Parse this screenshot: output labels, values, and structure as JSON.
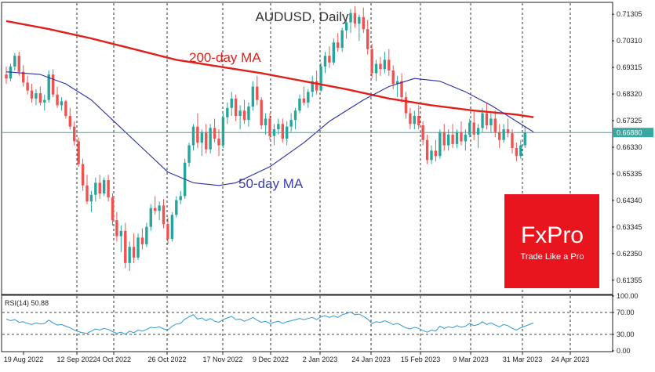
{
  "chart_data": [
    {
      "type": "line",
      "subtype": "candlestick",
      "title": "AUDUSD, Daily",
      "x_tick_labels": [
        "19 Aug 2022",
        "12 Sep 2022",
        "4 Oct 2022",
        "26 Oct 2022",
        "17 Nov 2022",
        "9 Dec 2022",
        "2 Jan 2023",
        "24 Jan 2023",
        "15 Feb 2023",
        "9 Mar 2023",
        "31 Mar 2023",
        "24 Apr 2023"
      ],
      "y_tick_labels": [
        "0.71305",
        "0.70310",
        "0.69315",
        "0.68320",
        "0.67325",
        "0.66330",
        "0.65335",
        "0.64340",
        "0.63345",
        "0.62350",
        "0.61355"
      ],
      "ylim": [
        0.6085,
        0.7172
      ],
      "current_price": "0.66880",
      "grid": "vertical dashed",
      "candles": [
        [
          0.6905,
          0.6935,
          0.687,
          0.689
        ],
        [
          0.689,
          0.6945,
          0.688,
          0.6935
        ],
        [
          0.6935,
          0.6985,
          0.692,
          0.6975
        ],
        [
          0.6975,
          0.699,
          0.69,
          0.6915
        ],
        [
          0.6915,
          0.694,
          0.686,
          0.6875
        ],
        [
          0.6875,
          0.69,
          0.683,
          0.6845
        ],
        [
          0.6845,
          0.687,
          0.68,
          0.6815
        ],
        [
          0.6815,
          0.685,
          0.679,
          0.6835
        ],
        [
          0.6835,
          0.686,
          0.679,
          0.68
        ],
        [
          0.68,
          0.683,
          0.677,
          0.681
        ],
        [
          0.681,
          0.692,
          0.68,
          0.6905
        ],
        [
          0.6905,
          0.6925,
          0.682,
          0.683
        ],
        [
          0.683,
          0.686,
          0.678,
          0.679
        ],
        [
          0.679,
          0.682,
          0.677,
          0.6805
        ],
        [
          0.6805,
          0.681,
          0.674,
          0.675
        ],
        [
          0.675,
          0.678,
          0.67,
          0.671
        ],
        [
          0.671,
          0.673,
          0.664,
          0.6655
        ],
        [
          0.6655,
          0.667,
          0.656,
          0.657
        ],
        [
          0.657,
          0.659,
          0.647,
          0.649
        ],
        [
          0.649,
          0.653,
          0.642,
          0.643
        ],
        [
          0.643,
          0.647,
          0.639,
          0.6455
        ],
        [
          0.6455,
          0.652,
          0.643,
          0.65
        ],
        [
          0.65,
          0.653,
          0.644,
          0.646
        ],
        [
          0.646,
          0.652,
          0.645,
          0.651
        ],
        [
          0.651,
          0.653,
          0.643,
          0.6445
        ],
        [
          0.6445,
          0.646,
          0.634,
          0.636
        ],
        [
          0.636,
          0.639,
          0.628,
          0.63
        ],
        [
          0.63,
          0.634,
          0.624,
          0.632
        ],
        [
          0.632,
          0.635,
          0.618,
          0.62
        ],
        [
          0.62,
          0.628,
          0.617,
          0.626
        ],
        [
          0.626,
          0.631,
          0.62,
          0.622
        ],
        [
          0.622,
          0.631,
          0.621,
          0.6295
        ],
        [
          0.6295,
          0.633,
          0.625,
          0.627
        ],
        [
          0.627,
          0.635,
          0.626,
          0.6335
        ],
        [
          0.6335,
          0.642,
          0.632,
          0.6405
        ],
        [
          0.6405,
          0.645,
          0.638,
          0.6395
        ],
        [
          0.6395,
          0.643,
          0.636,
          0.6415
        ],
        [
          0.6415,
          0.644,
          0.633,
          0.6345
        ],
        [
          0.6345,
          0.637,
          0.627,
          0.629
        ],
        [
          0.629,
          0.639,
          0.628,
          0.638
        ],
        [
          0.638,
          0.645,
          0.637,
          0.6435
        ],
        [
          0.6435,
          0.647,
          0.642,
          0.645
        ],
        [
          0.645,
          0.659,
          0.644,
          0.6575
        ],
        [
          0.6575,
          0.665,
          0.656,
          0.664
        ],
        [
          0.664,
          0.672,
          0.662,
          0.671
        ],
        [
          0.671,
          0.676,
          0.663,
          0.665
        ],
        [
          0.665,
          0.67,
          0.66,
          0.669
        ],
        [
          0.669,
          0.672,
          0.661,
          0.6625
        ],
        [
          0.6625,
          0.672,
          0.661,
          0.6705
        ],
        [
          0.6705,
          0.674,
          0.665,
          0.6665
        ],
        [
          0.6665,
          0.67,
          0.66,
          0.664
        ],
        [
          0.664,
          0.676,
          0.663,
          0.6745
        ],
        [
          0.6745,
          0.68,
          0.672,
          0.678
        ],
        [
          0.678,
          0.684,
          0.675,
          0.6815
        ],
        [
          0.6815,
          0.683,
          0.673,
          0.675
        ],
        [
          0.675,
          0.679,
          0.67,
          0.677
        ],
        [
          0.677,
          0.681,
          0.672,
          0.6735
        ],
        [
          0.6735,
          0.68,
          0.671,
          0.6785
        ],
        [
          0.6785,
          0.688,
          0.677,
          0.686
        ],
        [
          0.686,
          0.69,
          0.679,
          0.681
        ],
        [
          0.681,
          0.682,
          0.67,
          0.6715
        ],
        [
          0.6715,
          0.676,
          0.668,
          0.674
        ],
        [
          0.674,
          0.676,
          0.666,
          0.6675
        ],
        [
          0.6675,
          0.672,
          0.664,
          0.67
        ],
        [
          0.67,
          0.674,
          0.668,
          0.672
        ],
        [
          0.672,
          0.674,
          0.665,
          0.6665
        ],
        [
          0.6665,
          0.673,
          0.664,
          0.671
        ],
        [
          0.671,
          0.676,
          0.669,
          0.6735
        ],
        [
          0.6735,
          0.678,
          0.67,
          0.677
        ],
        [
          0.677,
          0.683,
          0.676,
          0.6815
        ],
        [
          0.6815,
          0.686,
          0.679,
          0.68
        ],
        [
          0.68,
          0.685,
          0.678,
          0.684
        ],
        [
          0.684,
          0.69,
          0.682,
          0.688
        ],
        [
          0.688,
          0.692,
          0.683,
          0.6845
        ],
        [
          0.6845,
          0.695,
          0.684,
          0.6935
        ],
        [
          0.6935,
          0.699,
          0.691,
          0.6975
        ],
        [
          0.6975,
          0.701,
          0.693,
          0.695
        ],
        [
          0.695,
          0.704,
          0.694,
          0.7025
        ],
        [
          0.7025,
          0.706,
          0.699,
          0.7005
        ],
        [
          0.7005,
          0.708,
          0.699,
          0.707
        ],
        [
          0.707,
          0.712,
          0.704,
          0.71
        ],
        [
          0.71,
          0.715,
          0.706,
          0.7135
        ],
        [
          0.7135,
          0.716,
          0.708,
          0.7095
        ],
        [
          0.7095,
          0.713,
          0.703,
          0.712
        ],
        [
          0.712,
          0.7155,
          0.706,
          0.7075
        ],
        [
          0.7075,
          0.711,
          0.698,
          0.7
        ],
        [
          0.7,
          0.702,
          0.689,
          0.691
        ],
        [
          0.691,
          0.696,
          0.688,
          0.6945
        ],
        [
          0.6945,
          0.697,
          0.69,
          0.6925
        ],
        [
          0.6925,
          0.699,
          0.691,
          0.696
        ],
        [
          0.696,
          0.7,
          0.69,
          0.692
        ],
        [
          0.692,
          0.694,
          0.685,
          0.687
        ],
        [
          0.687,
          0.69,
          0.682,
          0.688
        ],
        [
          0.688,
          0.691,
          0.68,
          0.682
        ],
        [
          0.682,
          0.684,
          0.674,
          0.676
        ],
        [
          0.676,
          0.678,
          0.67,
          0.672
        ],
        [
          0.672,
          0.677,
          0.67,
          0.675
        ],
        [
          0.675,
          0.679,
          0.67,
          0.6715
        ],
        [
          0.6715,
          0.673,
          0.664,
          0.666
        ],
        [
          0.666,
          0.668,
          0.657,
          0.6585
        ],
        [
          0.6585,
          0.664,
          0.657,
          0.662
        ],
        [
          0.662,
          0.666,
          0.658,
          0.66
        ],
        [
          0.66,
          0.67,
          0.659,
          0.669
        ],
        [
          0.669,
          0.672,
          0.662,
          0.664
        ],
        [
          0.664,
          0.67,
          0.662,
          0.668
        ],
        [
          0.668,
          0.672,
          0.663,
          0.6645
        ],
        [
          0.6645,
          0.67,
          0.663,
          0.669
        ],
        [
          0.669,
          0.673,
          0.664,
          0.6655
        ],
        [
          0.6655,
          0.67,
          0.662,
          0.668
        ],
        [
          0.668,
          0.674,
          0.667,
          0.6725
        ],
        [
          0.6725,
          0.677,
          0.666,
          0.668
        ],
        [
          0.668,
          0.672,
          0.663,
          0.6705
        ],
        [
          0.6705,
          0.678,
          0.669,
          0.676
        ],
        [
          0.676,
          0.68,
          0.67,
          0.6715
        ],
        [
          0.6715,
          0.676,
          0.669,
          0.674
        ],
        [
          0.674,
          0.677,
          0.667,
          0.669
        ],
        [
          0.669,
          0.672,
          0.663,
          0.666
        ],
        [
          0.666,
          0.672,
          0.665,
          0.67
        ],
        [
          0.67,
          0.674,
          0.667,
          0.6685
        ],
        [
          0.6685,
          0.67,
          0.661,
          0.663
        ],
        [
          0.663,
          0.665,
          0.658,
          0.66
        ],
        [
          0.66,
          0.666,
          0.659,
          0.664
        ],
        [
          0.664,
          0.671,
          0.663,
          0.6688
        ]
      ],
      "series": [
        {
          "name": "200-day MA",
          "color": "#e0201b",
          "values": [
            [
              0,
              0.7105
            ],
            [
              10,
              0.7075
            ],
            [
              20,
              0.704
            ],
            [
              30,
              0.7
            ],
            [
              40,
              0.696
            ],
            [
              50,
              0.6935
            ],
            [
              60,
              0.691
            ],
            [
              70,
              0.688
            ],
            [
              80,
              0.685
            ],
            [
              90,
              0.6815
            ],
            [
              100,
              0.679
            ],
            [
              110,
              0.677
            ],
            [
              120,
              0.6755
            ],
            [
              124,
              0.6745
            ]
          ]
        },
        {
          "name": "50-day MA",
          "color": "#2a2fa4",
          "values": [
            [
              0,
              0.6915
            ],
            [
              8,
              0.6905
            ],
            [
              14,
              0.687
            ],
            [
              20,
              0.681
            ],
            [
              26,
              0.672
            ],
            [
              32,
              0.663
            ],
            [
              38,
              0.654
            ],
            [
              44,
              0.65
            ],
            [
              50,
              0.649
            ],
            [
              54,
              0.65
            ],
            [
              62,
              0.656
            ],
            [
              70,
              0.665
            ],
            [
              76,
              0.673
            ],
            [
              84,
              0.681
            ],
            [
              90,
              0.686
            ],
            [
              96,
              0.689
            ],
            [
              102,
              0.688
            ],
            [
              108,
              0.684
            ],
            [
              114,
              0.679
            ],
            [
              120,
              0.673
            ],
            [
              124,
              0.669
            ]
          ]
        }
      ]
    },
    {
      "type": "line",
      "title": "RSI(14) 50.88",
      "y_tick_labels": [
        "100.00",
        "70.00",
        "30.00",
        "0.00"
      ],
      "ylim": [
        0,
        100
      ],
      "color": "#2f9bd8",
      "values": [
        58,
        55,
        57,
        52,
        53,
        50,
        48,
        51,
        49,
        50,
        56,
        51,
        47,
        48,
        45,
        42,
        38,
        35,
        33,
        32,
        36,
        40,
        38,
        41,
        39,
        35,
        32,
        34,
        30,
        36,
        33,
        38,
        36,
        39,
        43,
        42,
        44,
        40,
        38,
        45,
        49,
        50,
        58,
        62,
        66,
        58,
        60,
        55,
        59,
        54,
        52,
        57,
        60,
        63,
        57,
        58,
        54,
        57,
        61,
        56,
        52,
        54,
        50,
        52,
        54,
        50,
        53,
        55,
        57,
        59,
        57,
        59,
        61,
        57,
        62,
        64,
        61,
        64,
        61,
        66,
        68,
        71,
        66,
        67,
        63,
        58,
        50,
        53,
        52,
        55,
        52,
        48,
        50,
        46,
        42,
        40,
        43,
        41,
        37,
        34,
        38,
        36,
        45,
        41,
        44,
        42,
        46,
        43,
        45,
        50,
        46,
        48,
        53,
        48,
        51,
        47,
        44,
        48,
        46,
        41,
        38,
        42,
        45,
        48,
        50.88
      ]
    }
  ],
  "annotations": {
    "ma200_label": "200-day MA",
    "ma50_label": "50-day MA"
  },
  "logo": {
    "brand": "FxPro",
    "tagline": "Trade Like a Pro",
    "color": "#e8141e"
  },
  "colors": {
    "bull": "#26a69a",
    "bear": "#ef5350",
    "price_line": "#3aa6a0"
  }
}
